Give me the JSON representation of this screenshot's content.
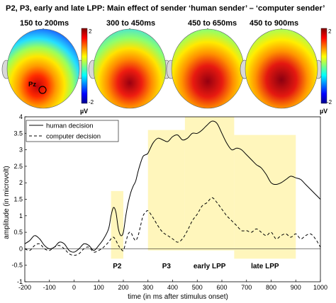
{
  "title": "P2, P3, early and late LPP: Main effect of sender ‘human sender’ – ‘computer sender’",
  "topomaps": {
    "maps": [
      {
        "label": "150 to 200ms",
        "electrode_label": "Pz"
      },
      {
        "label": "300 to 450ms"
      },
      {
        "label": "450 to 650ms"
      },
      {
        "label": "450 to 900ms"
      }
    ],
    "colorbar_left": {
      "max": "2",
      "min": "-2",
      "unit": "µV"
    },
    "colorbar_right": {
      "max": "2",
      "min": "-2",
      "unit": "µV"
    }
  },
  "chart_data": {
    "type": "line",
    "title": "",
    "xlabel": "time (in ms after stimulus onset)",
    "ylabel": "amplitude (in microvolt)",
    "xlim": [
      -200,
      1000
    ],
    "ylim": [
      -1,
      4
    ],
    "xticks": [
      -200,
      -100,
      0,
      100,
      200,
      300,
      400,
      500,
      600,
      700,
      800,
      900,
      1000
    ],
    "yticks": [
      -1,
      -0.5,
      0,
      0.5,
      1,
      1.5,
      2,
      2.5,
      3,
      3.5,
      4
    ],
    "legend_position": "top-left",
    "series": [
      {
        "name": "human decision",
        "style": "solid",
        "x": [
          -200,
          -180,
          -160,
          -140,
          -120,
          -100,
          -80,
          -60,
          -40,
          -20,
          0,
          20,
          40,
          60,
          80,
          100,
          120,
          140,
          150,
          160,
          170,
          180,
          190,
          200,
          210,
          220,
          230,
          240,
          250,
          260,
          270,
          280,
          290,
          300,
          320,
          340,
          360,
          380,
          400,
          420,
          440,
          460,
          480,
          500,
          520,
          540,
          560,
          580,
          600,
          620,
          640,
          660,
          680,
          700,
          720,
          740,
          760,
          780,
          800,
          820,
          840,
          860,
          880,
          900,
          920,
          940,
          960,
          980,
          1000
        ],
        "y": [
          0.15,
          0.25,
          0.4,
          0.3,
          0.1,
          0.0,
          0.05,
          0.2,
          0.15,
          -0.05,
          -0.1,
          0.0,
          0.15,
          0.1,
          -0.05,
          0.1,
          0.3,
          0.6,
          1.0,
          1.25,
          1.1,
          0.6,
          0.4,
          0.5,
          1.0,
          1.4,
          1.7,
          1.9,
          2.05,
          2.35,
          2.6,
          2.8,
          2.85,
          2.9,
          3.2,
          3.35,
          3.3,
          3.25,
          3.4,
          3.45,
          3.3,
          3.35,
          3.5,
          3.5,
          3.6,
          3.75,
          3.87,
          3.8,
          3.5,
          3.2,
          3.0,
          3.05,
          3.0,
          2.85,
          2.7,
          2.55,
          2.45,
          2.25,
          2.0,
          1.95,
          2.0,
          2.1,
          2.2,
          2.15,
          2.1,
          1.95,
          1.8,
          1.65,
          1.5
        ]
      },
      {
        "name": "computer decision",
        "style": "dashed",
        "x": [
          -200,
          -180,
          -160,
          -140,
          -120,
          -100,
          -80,
          -60,
          -40,
          -20,
          0,
          20,
          40,
          60,
          80,
          100,
          120,
          140,
          150,
          160,
          170,
          180,
          190,
          200,
          210,
          220,
          230,
          240,
          250,
          260,
          270,
          280,
          290,
          300,
          320,
          340,
          360,
          380,
          400,
          420,
          440,
          460,
          480,
          500,
          520,
          540,
          560,
          580,
          600,
          620,
          640,
          660,
          680,
          700,
          720,
          740,
          760,
          780,
          800,
          820,
          840,
          860,
          880,
          900,
          920,
          940,
          960,
          980,
          1000
        ],
        "y": [
          0.0,
          -0.05,
          0.1,
          0.15,
          0.0,
          -0.05,
          0.05,
          0.1,
          0.0,
          -0.15,
          -0.2,
          -0.15,
          0.0,
          0.05,
          -0.1,
          -0.05,
          0.05,
          0.2,
          0.3,
          0.35,
          0.25,
          0.1,
          0.0,
          -0.05,
          0.2,
          0.45,
          0.5,
          0.35,
          0.25,
          0.4,
          0.7,
          1.0,
          1.1,
          1.15,
          0.95,
          0.7,
          0.5,
          0.4,
          0.3,
          0.2,
          0.3,
          0.55,
          0.85,
          1.05,
          1.3,
          1.4,
          1.55,
          1.4,
          1.2,
          1.0,
          0.85,
          0.7,
          0.55,
          0.55,
          0.5,
          0.6,
          0.5,
          0.4,
          0.5,
          0.3,
          0.4,
          0.45,
          0.35,
          0.45,
          0.3,
          0.4,
          0.45,
          0.3,
          0.05
        ]
      }
    ],
    "highlight_windows": [
      {
        "label": "P2",
        "x": [
          150,
          200
        ],
        "y": [
          -0.3,
          1.75
        ]
      },
      {
        "label": "P3",
        "x": [
          300,
          450
        ],
        "y": [
          -0.05,
          3.6
        ]
      },
      {
        "label": "early LPP",
        "x": [
          450,
          650
        ],
        "y": [
          -0.05,
          4.0
        ]
      },
      {
        "label": "late LPP",
        "x": [
          650,
          900
        ],
        "y": [
          -0.3,
          3.45
        ]
      }
    ]
  }
}
